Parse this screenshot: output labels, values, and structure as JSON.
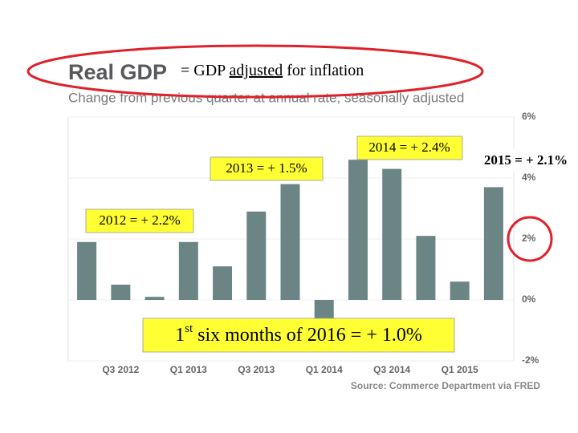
{
  "title": "Real GDP",
  "annotation": [
    "= GDP ",
    "adjusted",
    " for inflation"
  ],
  "callouts": [
    "2012 = + 2.2%",
    "2013 = + 1.5%",
    "2014 = + 2.4%",
    "2015 = + 2.1%"
  ],
  "callout_2016": [
    "1",
    "st",
    " six months of 2016 = + 1.0%"
  ],
  "chart_data": {
    "type": "bar",
    "subtitle": "Change from previous quarter at annual rate, seasonally adjusted",
    "source": "Source: Commerce Department via FRED",
    "categories": [
      null,
      "Q3 2012",
      null,
      "Q1 2013",
      null,
      "Q3 2013",
      null,
      "Q1 2014",
      null,
      "Q3 2014",
      null,
      "Q1 2015",
      null
    ],
    "values": [
      1.9,
      0.5,
      0.1,
      1.9,
      1.1,
      2.9,
      3.8,
      -0.6,
      4.6,
      4.3,
      2.1,
      0.6,
      3.7
    ],
    "color": "#6b8585",
    "ylim": [
      -2,
      6
    ],
    "yticks": [
      {
        "value": -2,
        "label": "-2%"
      },
      {
        "value": 0,
        "label": "0%"
      },
      {
        "value": 2,
        "label": "2%"
      },
      {
        "value": 4,
        "label": "4%"
      },
      {
        "value": 6,
        "label": "6%"
      }
    ],
    "grid": true
  }
}
